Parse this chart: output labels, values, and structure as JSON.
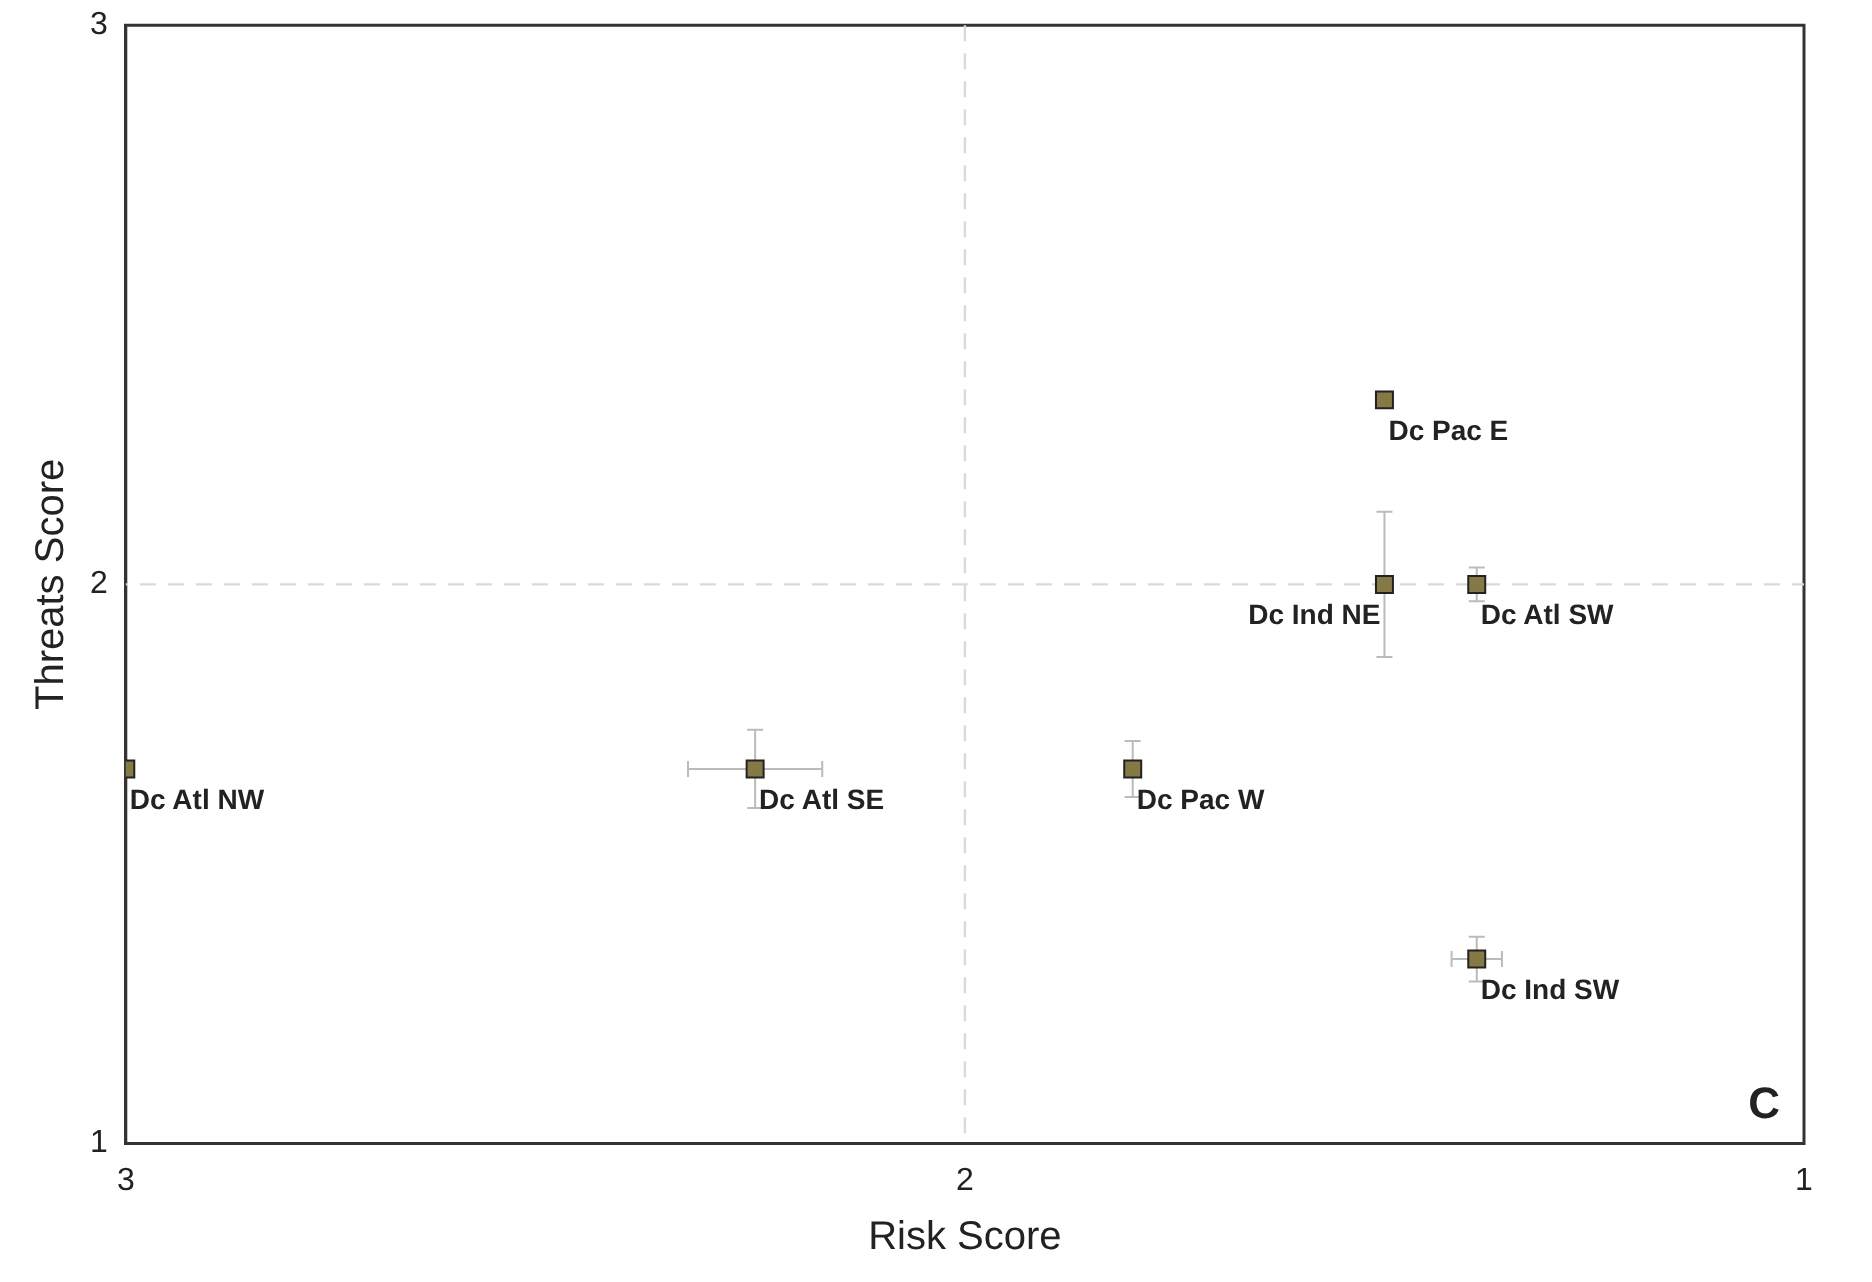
{
  "chart_data": {
    "type": "scatter",
    "xlabel": "Risk Score",
    "ylabel": "Threats Score",
    "x": [
      3,
      2.25,
      1.8,
      1.5,
      1.5,
      1.39,
      1.39
    ],
    "series": [
      {
        "color": "#857a45",
        "values": [
          1.67,
          1.67,
          1.67,
          2.33,
          2.0,
          2.0,
          1.33
        ],
        "errors": [
          null,
          0.07,
          0.05,
          null,
          0.13,
          0.03,
          0.04
        ],
        "xerrors": [
          null,
          0.08,
          null,
          null,
          null,
          null,
          0.03
        ]
      }
    ],
    "xlim": [
      3,
      1
    ],
    "xticks": [
      3,
      2,
      1
    ],
    "ylim": [
      1,
      3
    ],
    "yticks": [
      1,
      2,
      3
    ],
    "grid": false,
    "legend": false,
    "marker": "square",
    "ref_lines": [
      {
        "axis": "x",
        "value": 2,
        "line_style": "dashed",
        "color": "#d9d9d9"
      },
      {
        "axis": "y",
        "value": 2,
        "line_style": "dashed",
        "color": "#d9d9d9"
      }
    ],
    "annotations": [
      {
        "text": "Dc Atl NW",
        "x": 3,
        "y": 1.67
      },
      {
        "text": "Dc Atl SE",
        "x": 2.25,
        "y": 1.67
      },
      {
        "text": "Dc Pac W",
        "x": 1.8,
        "y": 1.67
      },
      {
        "text": "Dc Pac E",
        "x": 1.5,
        "y": 2.33
      },
      {
        "text": "Dc Ind NE",
        "x": 1.5,
        "y": 2.0
      },
      {
        "text": "Dc Atl SW",
        "x": 1.39,
        "y": 2.0
      },
      {
        "text": "Dc Ind SW",
        "x": 1.39,
        "y": 1.33
      },
      "C"
    ]
  }
}
